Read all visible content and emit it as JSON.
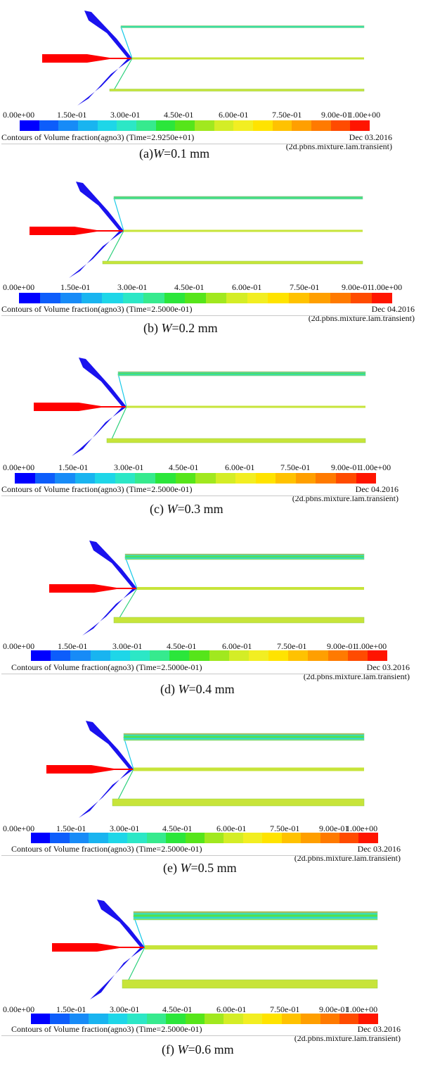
{
  "colors": [
    "#0000ff",
    "#0d5dfb",
    "#178bf7",
    "#19b4f0",
    "#1ed6e8",
    "#2ce7c6",
    "#36ea8e",
    "#2be63b",
    "#56e51a",
    "#a1e81f",
    "#d4ed26",
    "#f2ee22",
    "#ffe300",
    "#ffc200",
    "#ff9f00",
    "#ff7a00",
    "#ff4b00",
    "#ff1500"
  ],
  "colors_desc": "colormap blue to red",
  "outlet_fill": "#c7e43a",
  "inlet_fill": "#ff0000",
  "side_fill": "#1a12ee",
  "panels": [
    {
      "ticks": [
        "0.00e+00",
        "1.50e-01",
        "3.00e-01",
        "4.50e-01",
        "6.00e-01",
        "7.50e-01",
        "9.00e-01",
        "1.00e+00"
      ],
      "contour": "Contours of Volume fraction(agno3)  (Time=2.9250e+01)",
      "date": "Dec 03.2016",
      "solver": "(2d.pbns.mixture.lam.transient)",
      "caption_prefix": "(a)",
      "caption_w": "W",
      "caption_rest": "=0.1 mm"
    },
    {
      "ticks": [
        "0.00e+00",
        "1.50e-01",
        "3.00e-01",
        "4.50e-01",
        "6.00e-01",
        "7.50e-01",
        "9.00e-01",
        "1.00e+00"
      ],
      "contour": "Contours of Volume fraction(agno3)  (Time=2.5000e-01)",
      "date": "Dec 04.2016",
      "solver": "(2d.pbns.mixture.lam.transient)",
      "caption_prefix": "(b) ",
      "caption_w": "W",
      "caption_rest": "=0.2 mm"
    },
    {
      "ticks": [
        "0.00e+00",
        "1.50e-01",
        "3.00e-01",
        "4.50e-01",
        "6.00e-01",
        "7.50e-01",
        "9.00e-01",
        "1.00e+00"
      ],
      "contour": "Contours of Volume fraction(agno3)  (Time=2.5000e-01)",
      "date": "Dec 04.2016",
      "solver": "(2d.pbns.mixture.lam.transient)",
      "caption_prefix": "(c) ",
      "caption_w": "W",
      "caption_rest": "=0.3 mm"
    },
    {
      "ticks": [
        "0.00e+00",
        "1.50e-01",
        "3.00e-01",
        "4.50e-01",
        "6.00e-01",
        "7.50e-01",
        "9.00e-01",
        "1.00e+00"
      ],
      "contour": "Contours of Volume fraction(agno3)  (Time=2.5000e-01)",
      "date": "Dec 03.2016",
      "solver": "(2d.pbns.mixture.lam.transient)",
      "caption_prefix": "(d) ",
      "caption_w": "W",
      "caption_rest": "=0.4 mm"
    },
    {
      "ticks": [
        "0.00e+00",
        "1.50e-01",
        "3.00e-01",
        "4.50e-01",
        "6.00e-01",
        "7.50e-01",
        "9.00e-01",
        "1.00e+00"
      ],
      "contour": "Contours of Volume fraction(agno3)  (Time=2.5000e-01)",
      "date": "Dec 03.2016",
      "solver": "(2d.pbns.mixture.lam.transient)",
      "caption_prefix": "(e) ",
      "caption_w": "W",
      "caption_rest": "=0.5 mm"
    },
    {
      "ticks": [
        "0.00e+00",
        "1.50e-01",
        "3.00e-01",
        "4.50e-01",
        "6.00e-01",
        "7.50e-01",
        "9.00e-01",
        "1.00e+00"
      ],
      "contour": "Contours of Volume fraction(agno3)  (Time=2.5000e-01)",
      "date": "Dec 03.2016",
      "solver": "(2d.pbns.mixture.lam.transient)",
      "caption_prefix": "(f) ",
      "caption_w": "W",
      "caption_rest": "=0.6 mm"
    }
  ]
}
